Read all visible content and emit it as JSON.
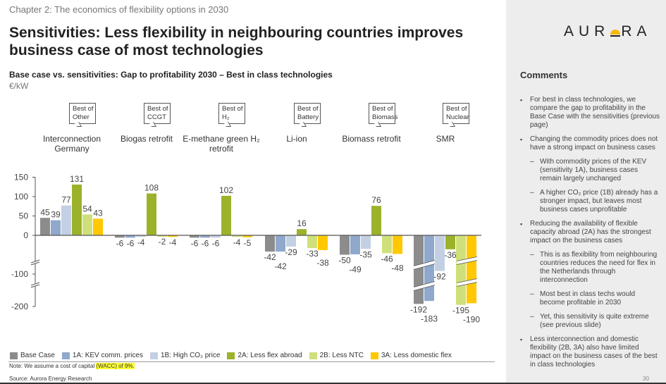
{
  "header": {
    "chapter": "Chapter 2: The economics of flexibility options in 2030",
    "title": "Sensitivities: Less flexibility in neighbouring countries improves business case of most technologies",
    "subtitle": "Base case vs. sensitivities: Gap to profitability 2030 – Best in class technologies",
    "unit": "€/kW"
  },
  "logo": {
    "text_left": "AUR",
    "text_right": "RA"
  },
  "comments": {
    "title": "Comments",
    "items": [
      {
        "text": "For best in class technologies, we compare the gap to profitability in the Base Case with the sensitivities (previous page)",
        "sub": []
      },
      {
        "text": "Changing the commodity prices does not have a strong impact on business cases",
        "sub": [
          "With commodity prices of the KEV (sensitivity 1A), business cases remain largely unchanged",
          "A higher CO₂ price (1B) already has a stronger impact, but leaves most business cases unprofitable"
        ]
      },
      {
        "text": "Reducing the availability of flexible capacity abroad (2A) has the strongest impact on the business cases",
        "sub": [
          "This is as flexibility from neighbouring countries reduces the need for flex in the Netherlands through interconnection",
          "Most best in class techs would become profitable in 2030",
          "Yet, this sensitivity is quite extreme (see previous slide)"
        ]
      },
      {
        "text": "Less interconnection and domestic flexibility (2B, 3A) also have limited impact on the business cases of the best in class technologies",
        "sub": []
      }
    ]
  },
  "page_number": "30",
  "footer": {
    "note_prefix": "Note: We assume a cost of capital ",
    "note_highlight": "(WACC) of 9%.",
    "source": "Source: Aurora Energy Research"
  },
  "chart_data": {
    "type": "bar",
    "title": "Base case vs. sensitivities: Gap to profitability 2030 – Best in class technologies",
    "ylabel": "€/kW",
    "ylim": [
      -200,
      150
    ],
    "yticks": [
      "150",
      "100",
      "50",
      "0",
      "-100",
      "-200"
    ],
    "axis_break": "between 0 and -100 and between -100 and -200",
    "categories": [
      "Interconnection Germany",
      "Biogas retrofit",
      "E-methane green H₂ retrofit",
      "Li-ion",
      "Biomass retrofit",
      "SMR"
    ],
    "callouts": [
      "Best of Other",
      "Best of CCGT",
      "Best of H₂",
      "Best of Battery",
      "Best of Biomass",
      "Best of Nuclear"
    ],
    "legend_position": "bottom",
    "series": [
      {
        "name": "Base Case",
        "color": "#8c8c8c",
        "values": [
          45,
          -6,
          -6,
          -42,
          -50,
          -192
        ]
      },
      {
        "name": "1A: KEV comm. prices",
        "color": "#8fa8cc",
        "values": [
          39,
          -6,
          -6,
          -42,
          -49,
          -183
        ]
      },
      {
        "name": "1B: High CO₂ price",
        "color": "#c3d0e3",
        "values": [
          77,
          -4,
          -6,
          -29,
          -35,
          -92
        ]
      },
      {
        "name": "2A: Less flex abroad",
        "color": "#9bb22a",
        "values": [
          131,
          108,
          102,
          16,
          76,
          -36
        ]
      },
      {
        "name": "2B: Less NTC",
        "color": "#cfe07a",
        "values": [
          54,
          -2,
          -4,
          -33,
          -46,
          -195
        ]
      },
      {
        "name": "3A: Less domestic flex",
        "color": "#ffc800",
        "values": [
          43,
          -4,
          -5,
          -38,
          -48,
          -190
        ]
      }
    ]
  }
}
